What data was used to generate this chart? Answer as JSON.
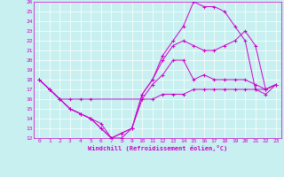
{
  "xlabel": "Windchill (Refroidissement éolien,°C)",
  "xlim": [
    -0.5,
    23.5
  ],
  "ylim": [
    12,
    26
  ],
  "xticks": [
    0,
    1,
    2,
    3,
    4,
    5,
    6,
    7,
    8,
    9,
    10,
    11,
    12,
    13,
    14,
    15,
    16,
    17,
    18,
    19,
    20,
    21,
    22,
    23
  ],
  "yticks": [
    12,
    13,
    14,
    15,
    16,
    17,
    18,
    19,
    20,
    21,
    22,
    23,
    24,
    25,
    26
  ],
  "bg_color": "#c8f0f0",
  "line_color": "#cc00cc",
  "grid_color": "#ffffff",
  "lines": [
    {
      "x": [
        0,
        1,
        2,
        3,
        4,
        5,
        10,
        11,
        12,
        13,
        14,
        15,
        16,
        17,
        18,
        19,
        20,
        21,
        22,
        23
      ],
      "y": [
        18,
        17,
        16,
        16,
        16,
        16,
        16,
        16,
        16.5,
        16.5,
        16.5,
        17,
        17,
        17,
        17,
        17,
        17,
        17,
        17,
        17.5
      ]
    },
    {
      "x": [
        0,
        1,
        2,
        3,
        4,
        5,
        6,
        7,
        8,
        9,
        10,
        11,
        12,
        13,
        14,
        15,
        16,
        17,
        18,
        19,
        20,
        21,
        22,
        23
      ],
      "y": [
        18,
        17,
        16,
        15,
        14.5,
        14,
        13.5,
        12,
        12,
        13,
        16,
        17.5,
        18.5,
        20,
        20,
        18,
        18.5,
        18,
        18,
        18,
        18,
        17.5,
        17,
        17.5
      ]
    },
    {
      "x": [
        0,
        1,
        2,
        3,
        4,
        5,
        6,
        7,
        8,
        9,
        10,
        11,
        12,
        13,
        14,
        15,
        16,
        17,
        18,
        19,
        20,
        21,
        22,
        23
      ],
      "y": [
        18,
        17,
        16,
        15,
        14.5,
        14,
        13,
        12,
        12.5,
        13,
        16.5,
        18,
        20,
        21.5,
        22,
        21.5,
        21,
        21,
        21.5,
        22,
        23,
        21.5,
        17,
        17.5
      ]
    },
    {
      "x": [
        0,
        1,
        2,
        3,
        4,
        5,
        6,
        7,
        8,
        9,
        10,
        11,
        12,
        13,
        14,
        15,
        16,
        17,
        18,
        19,
        20,
        21,
        22,
        23
      ],
      "y": [
        18,
        17,
        16,
        15,
        14.5,
        14,
        13,
        12,
        12.5,
        13,
        16.5,
        18,
        20.5,
        22,
        23.5,
        26,
        25.5,
        25.5,
        25,
        23.5,
        22,
        17,
        16.5,
        17.5
      ]
    }
  ]
}
